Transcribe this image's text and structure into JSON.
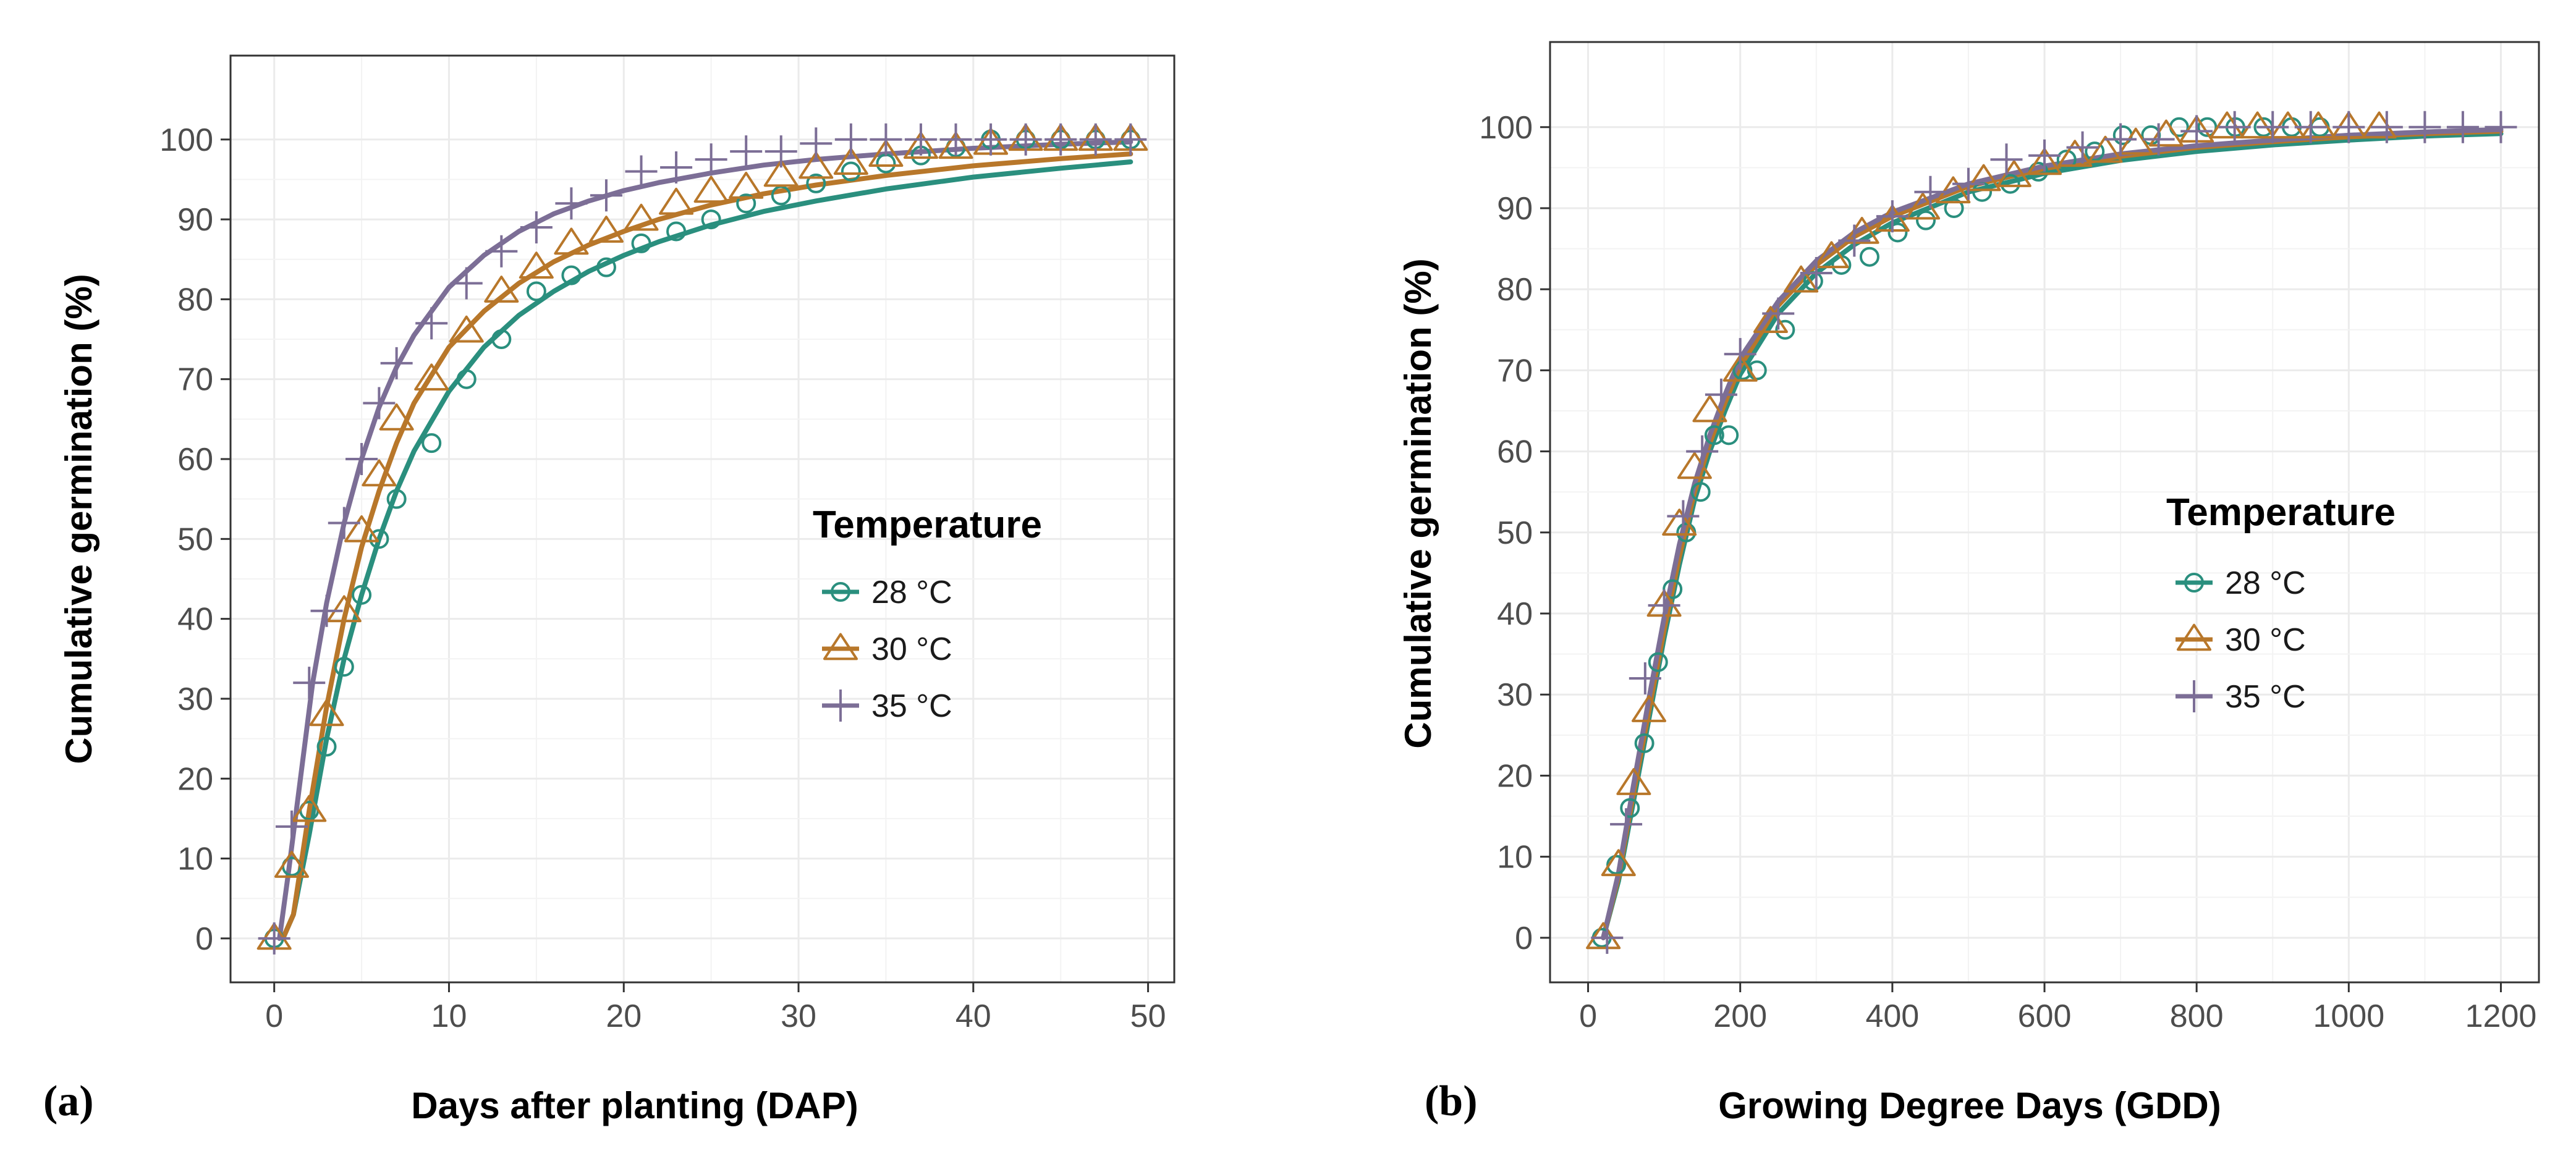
{
  "colors": {
    "28": "#2a8f7e",
    "30": "#b8772a",
    "35": "#7c6e96",
    "grid": "#ebebeb",
    "border": "#333333"
  },
  "chart_data": [
    {
      "type": "line",
      "panel_label": "(a)",
      "title": "",
      "xlabel": "Days after planting (DAP)",
      "ylabel": "Cumulative germination (%)",
      "xlim": [
        -2.5,
        51.5
      ],
      "ylim": [
        -5.5,
        110.5
      ],
      "x_ticks": [
        0,
        10,
        20,
        30,
        40,
        50
      ],
      "y_ticks": [
        0,
        10,
        20,
        30,
        40,
        50,
        60,
        70,
        80,
        90,
        100
      ],
      "grid": true,
      "legend": {
        "title": "Temperature",
        "position": "center-right",
        "entries": [
          "28 °C",
          "30 °C",
          "35 °C"
        ]
      },
      "series": [
        {
          "name": "28 °C",
          "color_key": "28",
          "marker": "circle",
          "points": {
            "x": [
              0,
              1,
              2,
              3,
              4,
              5,
              6,
              7,
              9,
              11,
              13,
              15,
              17,
              19,
              21,
              23,
              25,
              27,
              29,
              31,
              33,
              35,
              37,
              39,
              41,
              43,
              45,
              47,
              49
            ],
            "y": [
              0,
              9,
              16,
              24,
              34,
              43,
              50,
              55,
              62,
              70,
              75,
              81,
              83,
              84,
              87,
              88.5,
              90,
              92,
              93,
              94.5,
              96,
              97,
              98,
              99,
              100,
              100,
              100,
              100,
              100
            ]
          },
          "curve": {
            "x": [
              0.5,
              1.1,
              2,
              3,
              4,
              5,
              6,
              7,
              8,
              10,
              12,
              14,
              16,
              18,
              20,
              22,
              25,
              28,
              31,
              35,
              40,
              45,
              49
            ],
            "y": [
              0,
              3,
              13,
              25,
              35,
              43,
              50,
              56,
              61,
              68.5,
              74,
              78,
              81,
              83.5,
              85.5,
              87.2,
              89.3,
              91,
              92.3,
              93.8,
              95.3,
              96.4,
              97.2
            ]
          }
        },
        {
          "name": "30 °C",
          "color_key": "30",
          "marker": "triangle",
          "points": {
            "x": [
              0,
              1,
              2,
              3,
              4,
              5,
              6,
              7,
              9,
              11,
              13,
              15,
              17,
              19,
              21,
              23,
              25,
              27,
              29,
              31,
              33,
              35,
              37,
              39,
              41,
              43,
              45,
              47,
              49
            ],
            "y": [
              0,
              9,
              16,
              28,
              41,
              51,
              58,
              65,
              70,
              76,
              81,
              84,
              87,
              88.5,
              90,
              92,
              93.5,
              94,
              95.5,
              96.5,
              97,
              98,
              99,
              99,
              99.5,
              100,
              100,
              100,
              100
            ]
          },
          "curve": {
            "x": [
              0.5,
              1.1,
              2,
              3,
              4,
              5,
              6,
              7,
              8,
              10,
              12,
              14,
              16,
              18,
              20,
              22,
              25,
              28,
              31,
              35,
              40,
              45,
              49
            ],
            "y": [
              0,
              3,
              16,
              29,
              40,
              49,
              56,
              62,
              67,
              74,
              78.5,
              82,
              84.7,
              86.8,
              88.5,
              90,
              91.8,
              93.2,
              94.3,
              95.5,
              96.7,
              97.6,
              98.2
            ]
          }
        },
        {
          "name": "35 °C",
          "color_key": "35",
          "marker": "plus",
          "points": {
            "x": [
              0,
              1,
              2,
              3,
              4,
              5,
              6,
              7,
              9,
              11,
              13,
              15,
              17,
              19,
              21,
              23,
              25,
              27,
              29,
              31,
              33,
              35,
              37,
              39,
              41,
              43,
              45,
              47,
              49
            ],
            "y": [
              0,
              14,
              32,
              41,
              52,
              60,
              67,
              72,
              77,
              82,
              86,
              89,
              92,
              93,
              96,
              96.5,
              97.5,
              98.5,
              98.5,
              99.5,
              100,
              100,
              100,
              100,
              100,
              100,
              100,
              100,
              100
            ]
          },
          "curve": {
            "x": [
              0.3,
              0.8,
              1.5,
              2.2,
              3,
              4,
              5,
              6,
              7,
              8,
              10,
              12,
              14,
              16,
              18,
              20,
              22,
              25,
              28,
              31,
              35,
              40,
              45,
              49
            ],
            "y": [
              0,
              8,
              20,
              32,
              42,
              52,
              60,
              66.5,
              71.5,
              75.5,
              81.5,
              85.5,
              88.5,
              90.7,
              92.3,
              93.6,
              94.6,
              95.8,
              96.8,
              97.5,
              98.2,
              98.9,
              99.4,
              99.7
            ]
          }
        }
      ]
    },
    {
      "type": "line",
      "panel_label": "(b)",
      "title": "",
      "xlabel": "Growing Degree Days (GDD)",
      "ylabel": "Cumulative germination (%)",
      "xlim": [
        -50,
        1250
      ],
      "ylim": [
        -5.5,
        110.5
      ],
      "x_ticks": [
        0,
        200,
        400,
        600,
        800,
        1000,
        1200
      ],
      "y_ticks": [
        0,
        10,
        20,
        30,
        40,
        50,
        60,
        70,
        80,
        90,
        100
      ],
      "grid": true,
      "legend": {
        "title": "Temperature",
        "position": "center-right",
        "entries": [
          "28 °C",
          "30 °C",
          "35 °C"
        ]
      },
      "series": [
        {
          "name": "28 °C",
          "color_key": "28",
          "marker": "circle",
          "points": {
            "x": [
              18,
              37,
              55,
              74,
              92,
              111,
              129,
              148,
              166,
              185,
              203,
              222,
              259,
              296,
              333,
              370,
              407,
              444,
              481,
              518,
              555,
              592,
              629,
              666,
              703,
              740,
              777,
              814,
              851,
              888,
              925,
              962
            ],
            "y": [
              0,
              9,
              16,
              24,
              34,
              43,
              50,
              55,
              62,
              62,
              70,
              70,
              75,
              81,
              83,
              84,
              87,
              88.5,
              90,
              92,
              93,
              94.5,
              96,
              97,
              99,
              99,
              100,
              100,
              100,
              100,
              100,
              100
            ]
          },
          "curve": {
            "x": [
              20,
              40,
              60,
              80,
              100,
              120,
              140,
              160,
              180,
              200,
              250,
              300,
              350,
              400,
              500,
              600,
              700,
              800,
              900,
              1000,
              1100,
              1200
            ],
            "y": [
              0,
              7,
              17,
              27,
              37,
              46,
              54,
              60,
              65,
              69.5,
              77,
              82,
              85.5,
              88.2,
              92,
              94.3,
              95.9,
              97,
              97.8,
              98.4,
              98.9,
              99.2
            ]
          }
        },
        {
          "name": "30 °C",
          "color_key": "30",
          "marker": "triangle",
          "points": {
            "x": [
              20,
              40,
              60,
              80,
              100,
              120,
              140,
              160,
              200,
              240,
              280,
              320,
              360,
              400,
              440,
              480,
              520,
              560,
              600,
              640,
              680,
              720,
              760,
              800,
              840,
              880,
              920,
              960,
              1000,
              1040
            ],
            "y": [
              0,
              9,
              19,
              28,
              41,
              51,
              58,
              65,
              70,
              76,
              81,
              84,
              87,
              88.5,
              90,
              92,
              93.5,
              94,
              95.5,
              96.5,
              97,
              98,
              99,
              99.5,
              100,
              100,
              100,
              100,
              100,
              100
            ]
          },
          "curve": {
            "x": [
              20,
              40,
              60,
              80,
              100,
              120,
              140,
              160,
              180,
              200,
              250,
              300,
              350,
              400,
              500,
              600,
              700,
              800,
              900,
              1000,
              1100,
              1200
            ],
            "y": [
              0,
              7.5,
              18,
              28,
              38,
              47,
              55,
              61,
              66,
              70.5,
              78,
              83,
              86.5,
              89,
              92.7,
              94.9,
              96.4,
              97.5,
              98.2,
              98.8,
              99.2,
              99.5
            ]
          }
        },
        {
          "name": "35 °C",
          "color_key": "35",
          "marker": "plus",
          "points": {
            "x": [
              25,
              50,
              75,
              100,
              125,
              150,
              175,
              200,
              250,
              300,
              350,
              400,
              450,
              500,
              550,
              600,
              650,
              700,
              750,
              800,
              850,
              900,
              950,
              1000,
              1050,
              1100,
              1150,
              1200
            ],
            "y": [
              0,
              14,
              32,
              41,
              52,
              60,
              67,
              72,
              77,
              82,
              86,
              89,
              92,
              93,
              96,
              96.5,
              97.5,
              98.5,
              98.5,
              99.5,
              100,
              100,
              100,
              100,
              100,
              100,
              100,
              100
            ]
          },
          "curve": {
            "x": [
              20,
              40,
              60,
              80,
              100,
              120,
              140,
              160,
              180,
              200,
              250,
              300,
              350,
              400,
              500,
              600,
              700,
              800,
              900,
              1000,
              1100,
              1200
            ],
            "y": [
              0,
              8,
              19,
              29.5,
              39.5,
              48.5,
              56,
              62,
              67,
              71.5,
              78.5,
              83.5,
              87,
              89.5,
              93,
              95.2,
              96.7,
              97.7,
              98.4,
              99,
              99.4,
              99.7
            ]
          }
        }
      ]
    }
  ]
}
